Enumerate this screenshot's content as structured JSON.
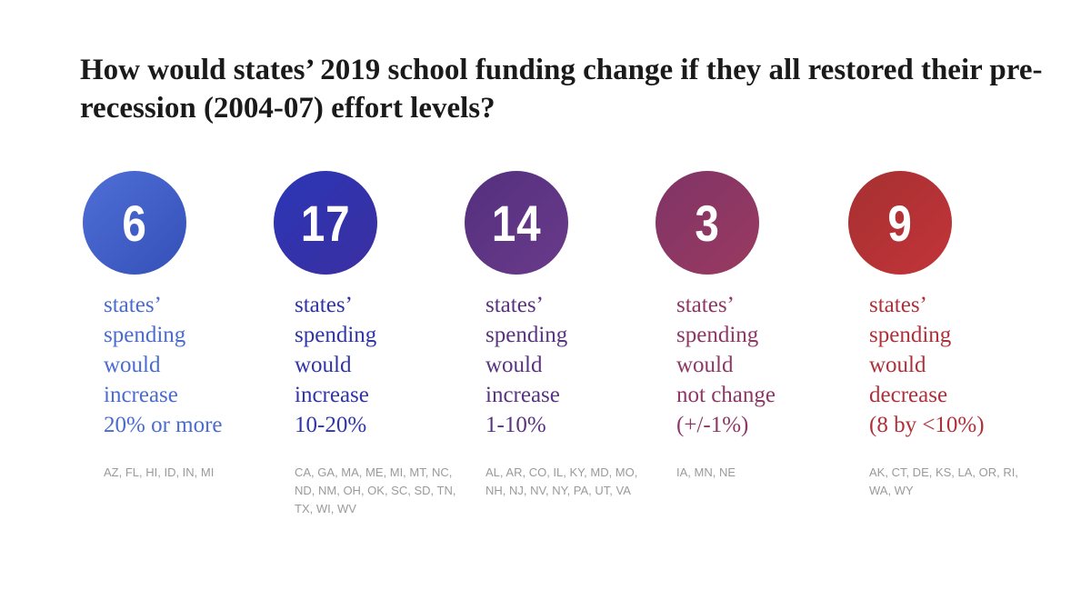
{
  "title": "How would states’ 2019 school funding change if they all restored their pre-recession (2004-07) effort levels?",
  "groups": [
    {
      "count": "6",
      "color": "#4a6bd0",
      "lines": [
        "states’",
        "spending",
        "would",
        "increase",
        "20% or more"
      ],
      "states": "AZ, FL, HI, ID, IN, MI"
    },
    {
      "count": "17",
      "color": "#2f35a8",
      "lines": [
        "states’",
        "spending",
        "would",
        "increase",
        "10-20%"
      ],
      "states": "CA, GA, MA, ME, MI, MT, NC, ND, NM, OH, OK, SC, SD, TN, TX, WI, WV"
    },
    {
      "count": "14",
      "color": "#5a3380",
      "lines": [
        "states’",
        "spending",
        "would",
        "increase",
        "1-10%"
      ],
      "states": "AL, AR, CO, IL, KY, MD, MO, NH, NJ, NV, NY, PA, UT, VA"
    },
    {
      "count": "3",
      "color": "#8e3766",
      "lines": [
        "states’",
        "spending",
        "would",
        "not change",
        "(+/-1%)"
      ],
      "states": "IA, MN, NE"
    },
    {
      "count": "9",
      "color": "#b0303a",
      "lines": [
        "states’",
        "spending",
        "would",
        "decrease",
        "(8 by <10%)"
      ],
      "states": "AK, CT, DE, KS, LA, OR, RI, WA, WY"
    }
  ]
}
